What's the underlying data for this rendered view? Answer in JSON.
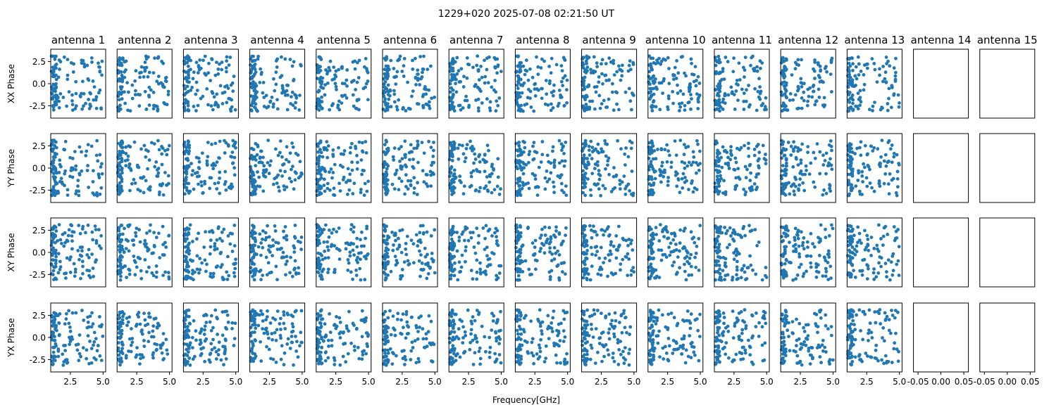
{
  "figure": {
    "suptitle": "1229+020 2025-07-08 02:21:50 UT",
    "xlabel": "Frequency[GHz]",
    "row_labels": [
      "XX Phase",
      "YY Phase",
      "XY Phase",
      "YX Phase"
    ],
    "antennas": [
      "antenna 1",
      "antenna 2",
      "antenna 3",
      "antenna 4",
      "antenna 5",
      "antenna 6",
      "antenna 7",
      "antenna 8",
      "antenna 9",
      "antenna 10",
      "antenna 11",
      "antenna 12",
      "antenna 13",
      "antenna 14",
      "antenna 15"
    ],
    "x_ticks": [
      "2.5",
      "5.0"
    ],
    "y_ticks": [
      "2.5",
      "0.0",
      "-2.5"
    ],
    "empty_x_ticks": [
      "-0.05",
      "0.00",
      "0.05"
    ]
  },
  "chart_data": {
    "type": "scatter",
    "marker_color": "#1f77b4",
    "xlim": [
      1.0,
      5.2
    ],
    "ylim": [
      -3.9,
      3.9
    ],
    "x_ticks": [
      2.5,
      5.0
    ],
    "y_ticks": [
      2.5,
      0.0,
      -2.5
    ],
    "empty_antennas": [
      "antenna 14",
      "antenna 15"
    ],
    "empty_xlim": [
      -0.06,
      0.06
    ],
    "empty_x_ticks": [
      -0.05,
      0.0,
      0.05
    ],
    "points_per_panel": 120,
    "point_distribution": "phase values spread uniformly over [-3.14, 3.14]; frequencies dense near 1 GHz and spread to 5 GHz",
    "axis_frame": "black box, no grid"
  }
}
